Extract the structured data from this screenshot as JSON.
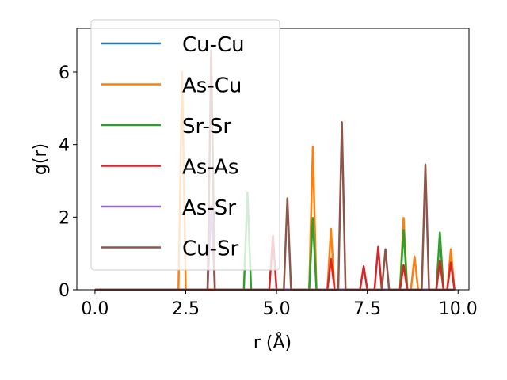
{
  "chart_data": {
    "type": "line",
    "xlabel": "r (Å)",
    "ylabel": "g(r)",
    "xlim": [
      -0.5,
      10.3
    ],
    "ylim": [
      0,
      7.2
    ],
    "xticks": [
      0.0,
      2.5,
      5.0,
      7.5,
      10.0
    ],
    "xtick_labels": [
      "0.0",
      "2.5",
      "5.0",
      "7.5",
      "10.0"
    ],
    "yticks": [
      0,
      2,
      4,
      6
    ],
    "ytick_labels": [
      "0",
      "2",
      "4",
      "6"
    ],
    "grid": false,
    "legend_position": "top-left",
    "series": [
      {
        "name": "Cu-Cu",
        "color": "#1f77b4",
        "peaks": []
      },
      {
        "name": "As-Cu",
        "color": "#ff7f0e",
        "peaks": [
          [
            2.4,
            6.0
          ],
          [
            6.0,
            3.95
          ],
          [
            6.5,
            1.68
          ],
          [
            8.5,
            1.98
          ],
          [
            8.8,
            0.92
          ],
          [
            9.8,
            1.12
          ]
        ]
      },
      {
        "name": "Sr-Sr",
        "color": "#2ca02c",
        "peaks": [
          [
            4.2,
            2.68
          ],
          [
            6.0,
            1.98
          ],
          [
            8.5,
            1.65
          ],
          [
            9.5,
            1.58
          ]
        ]
      },
      {
        "name": "As-As",
        "color": "#d62728",
        "peaks": [
          [
            4.9,
            1.48
          ],
          [
            6.5,
            0.85
          ],
          [
            7.4,
            0.65
          ],
          [
            7.8,
            1.18
          ],
          [
            8.5,
            0.68
          ],
          [
            9.5,
            0.8
          ],
          [
            9.8,
            0.75
          ]
        ]
      },
      {
        "name": "As-Sr",
        "color": "#9467bd",
        "peaks": [
          [
            3.2,
            2.3
          ]
        ]
      },
      {
        "name": "Cu-Sr",
        "color": "#8c564b",
        "peaks": [
          [
            3.2,
            6.6
          ],
          [
            5.3,
            2.52
          ],
          [
            6.8,
            4.62
          ],
          [
            8.0,
            1.12
          ],
          [
            9.1,
            3.45
          ]
        ]
      }
    ],
    "x_range": [
      0,
      9.9
    ]
  }
}
